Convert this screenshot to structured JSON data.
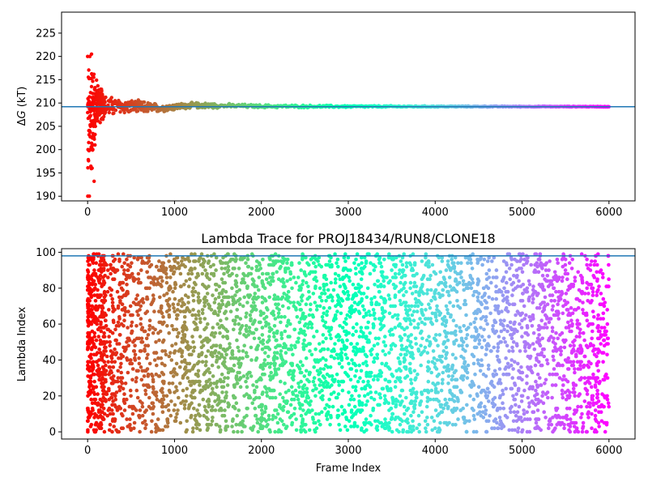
{
  "chart_data": [
    {
      "type": "scatter",
      "title": "",
      "xlabel": "",
      "ylabel": "ΔG (kT)",
      "ylabel_main": "Δ",
      "ylabel_italic": "G",
      "ylabel_suffix": " (kT)",
      "xlim": [
        -300,
        6300
      ],
      "ylim": [
        189,
        229.5
      ],
      "xticks": [
        0,
        1000,
        2000,
        3000,
        4000,
        5000,
        6000
      ],
      "xtick_labels": [
        "0",
        "1000",
        "2000",
        "3000",
        "4000",
        "5000",
        "6000"
      ],
      "yticks": [
        190,
        195,
        200,
        205,
        210,
        215,
        220,
        225
      ],
      "ytick_labels": [
        "190",
        "195",
        "200",
        "205",
        "210",
        "215",
        "220",
        "225"
      ],
      "reference_line": {
        "y": 209.2,
        "color": "#1f77b4"
      },
      "colormap": "rainbow (red at frame 0 to violet at frame 6000)",
      "series": [
        {
          "description": "running free energy estimate per frame",
          "x_range": [
            0,
            6000
          ],
          "envelope": [
            {
              "x": 0,
              "y_low": 190,
              "y_high": 220.4
            },
            {
              "x": 50,
              "y_low": 193,
              "y_high": 220.6
            },
            {
              "x": 100,
              "y_low": 204.5,
              "y_high": 216
            },
            {
              "x": 200,
              "y_low": 206.5,
              "y_high": 212
            },
            {
              "x": 400,
              "y_low": 207.5,
              "y_high": 211
            },
            {
              "x": 600,
              "y_low": 207.5,
              "y_high": 210.7
            },
            {
              "x": 850,
              "y_low": 208,
              "y_high": 209.8
            },
            {
              "x": 1200,
              "y_low": 208.8,
              "y_high": 210.2
            },
            {
              "x": 2000,
              "y_low": 208.9,
              "y_high": 209.7
            },
            {
              "x": 3000,
              "y_low": 209.0,
              "y_high": 209.5
            },
            {
              "x": 4000,
              "y_low": 209.1,
              "y_high": 209.4
            },
            {
              "x": 6000,
              "y_low": 209.15,
              "y_high": 209.3
            }
          ],
          "outliers": [
            {
              "x": 2,
              "y": 190
            },
            {
              "x": 20,
              "y": 190
            },
            {
              "x": 5,
              "y": 200
            },
            {
              "x": 30,
              "y": 200
            },
            {
              "x": 60,
              "y": 200
            },
            {
              "x": 0,
              "y": 220
            },
            {
              "x": 25,
              "y": 220
            },
            {
              "x": 45,
              "y": 220.5
            },
            {
              "x": 55,
              "y": 216
            },
            {
              "x": 70,
              "y": 215.5
            },
            {
              "x": 80,
              "y": 213
            },
            {
              "x": 75,
              "y": 193.2
            },
            {
              "x": 85,
              "y": 201
            },
            {
              "x": 10,
              "y": 210
            },
            {
              "x": 40,
              "y": 210
            },
            {
              "x": 65,
              "y": 203
            },
            {
              "x": 90,
              "y": 205
            }
          ]
        }
      ]
    },
    {
      "type": "scatter",
      "title": "Lambda Trace for PROJ18434/RUN8/CLONE18",
      "xlabel": "Frame Index",
      "ylabel": "Lambda Index",
      "xlim": [
        -300,
        6300
      ],
      "ylim": [
        -4,
        102
      ],
      "xticks": [
        0,
        1000,
        2000,
        3000,
        4000,
        5000,
        6000
      ],
      "xtick_labels": [
        "0",
        "1000",
        "2000",
        "3000",
        "4000",
        "5000",
        "6000"
      ],
      "yticks": [
        0,
        20,
        40,
        60,
        80,
        100
      ],
      "ytick_labels": [
        "0",
        "20",
        "40",
        "60",
        "80",
        "100"
      ],
      "reference_line": {
        "y": 98,
        "color": "#1f77b4"
      },
      "colormap": "rainbow (red at frame 0 to violet at frame 6000)",
      "series": [
        {
          "description": "lambda index visited at each frame, values spread uniformly over 0-99",
          "x_range": [
            0,
            6000
          ],
          "y_range": [
            0,
            99
          ],
          "dense_start": {
            "x_range": [
              0,
              200
            ],
            "note": "initial frames cluster at low frame index across all lambda values"
          }
        }
      ]
    }
  ]
}
